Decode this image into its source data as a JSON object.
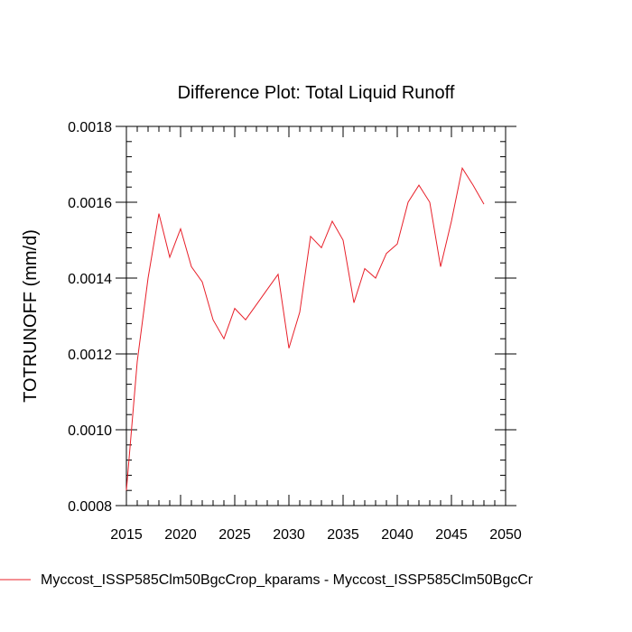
{
  "chart_data": {
    "type": "line",
    "title": "Difference Plot: Total Liquid Runoff",
    "xlabel": "",
    "ylabel": "TOTRUNOFF  (mm/d)",
    "xlim": [
      2015,
      2050
    ],
    "ylim": [
      0.0008,
      0.0018
    ],
    "xticks": [
      2015,
      2020,
      2025,
      2030,
      2035,
      2040,
      2045,
      2050
    ],
    "xtick_labels": [
      "2015",
      "2020",
      "2025",
      "2030",
      "2035",
      "2040",
      "2045",
      "2050"
    ],
    "yticks": [
      0.0008,
      0.001,
      0.0012,
      0.0014,
      0.0016,
      0.0018
    ],
    "ytick_labels": [
      "0.0008",
      "0.0010",
      "0.0012",
      "0.0014",
      "0.0016",
      "0.0018"
    ],
    "legend_position": "bottom-left",
    "series": [
      {
        "name": "Myccost_ISSP585Clm50BgcCrop_kparams - Myccost_ISSP585Clm50BgcCr",
        "color": "#e8202a",
        "x": [
          2015,
          2016,
          2017,
          2018,
          2019,
          2020,
          2021,
          2022,
          2023,
          2024,
          2025,
          2026,
          2027,
          2028,
          2029,
          2030,
          2031,
          2032,
          2033,
          2034,
          2035,
          2036,
          2037,
          2038,
          2039,
          2040,
          2041,
          2042,
          2043,
          2044,
          2045,
          2046,
          2047,
          2048
        ],
        "values": [
          0.00084,
          0.00118,
          0.0014,
          0.00157,
          0.001455,
          0.00153,
          0.00143,
          0.00139,
          0.00129,
          0.00124,
          0.00132,
          0.00129,
          0.00133,
          0.00137,
          0.00141,
          0.001215,
          0.00131,
          0.00151,
          0.00148,
          0.00155,
          0.0015,
          0.001335,
          0.001425,
          0.0014,
          0.001465,
          0.00149,
          0.0016,
          0.001645,
          0.0016,
          0.00143,
          0.00155,
          0.00169,
          0.001645,
          0.001595
        ]
      }
    ]
  }
}
